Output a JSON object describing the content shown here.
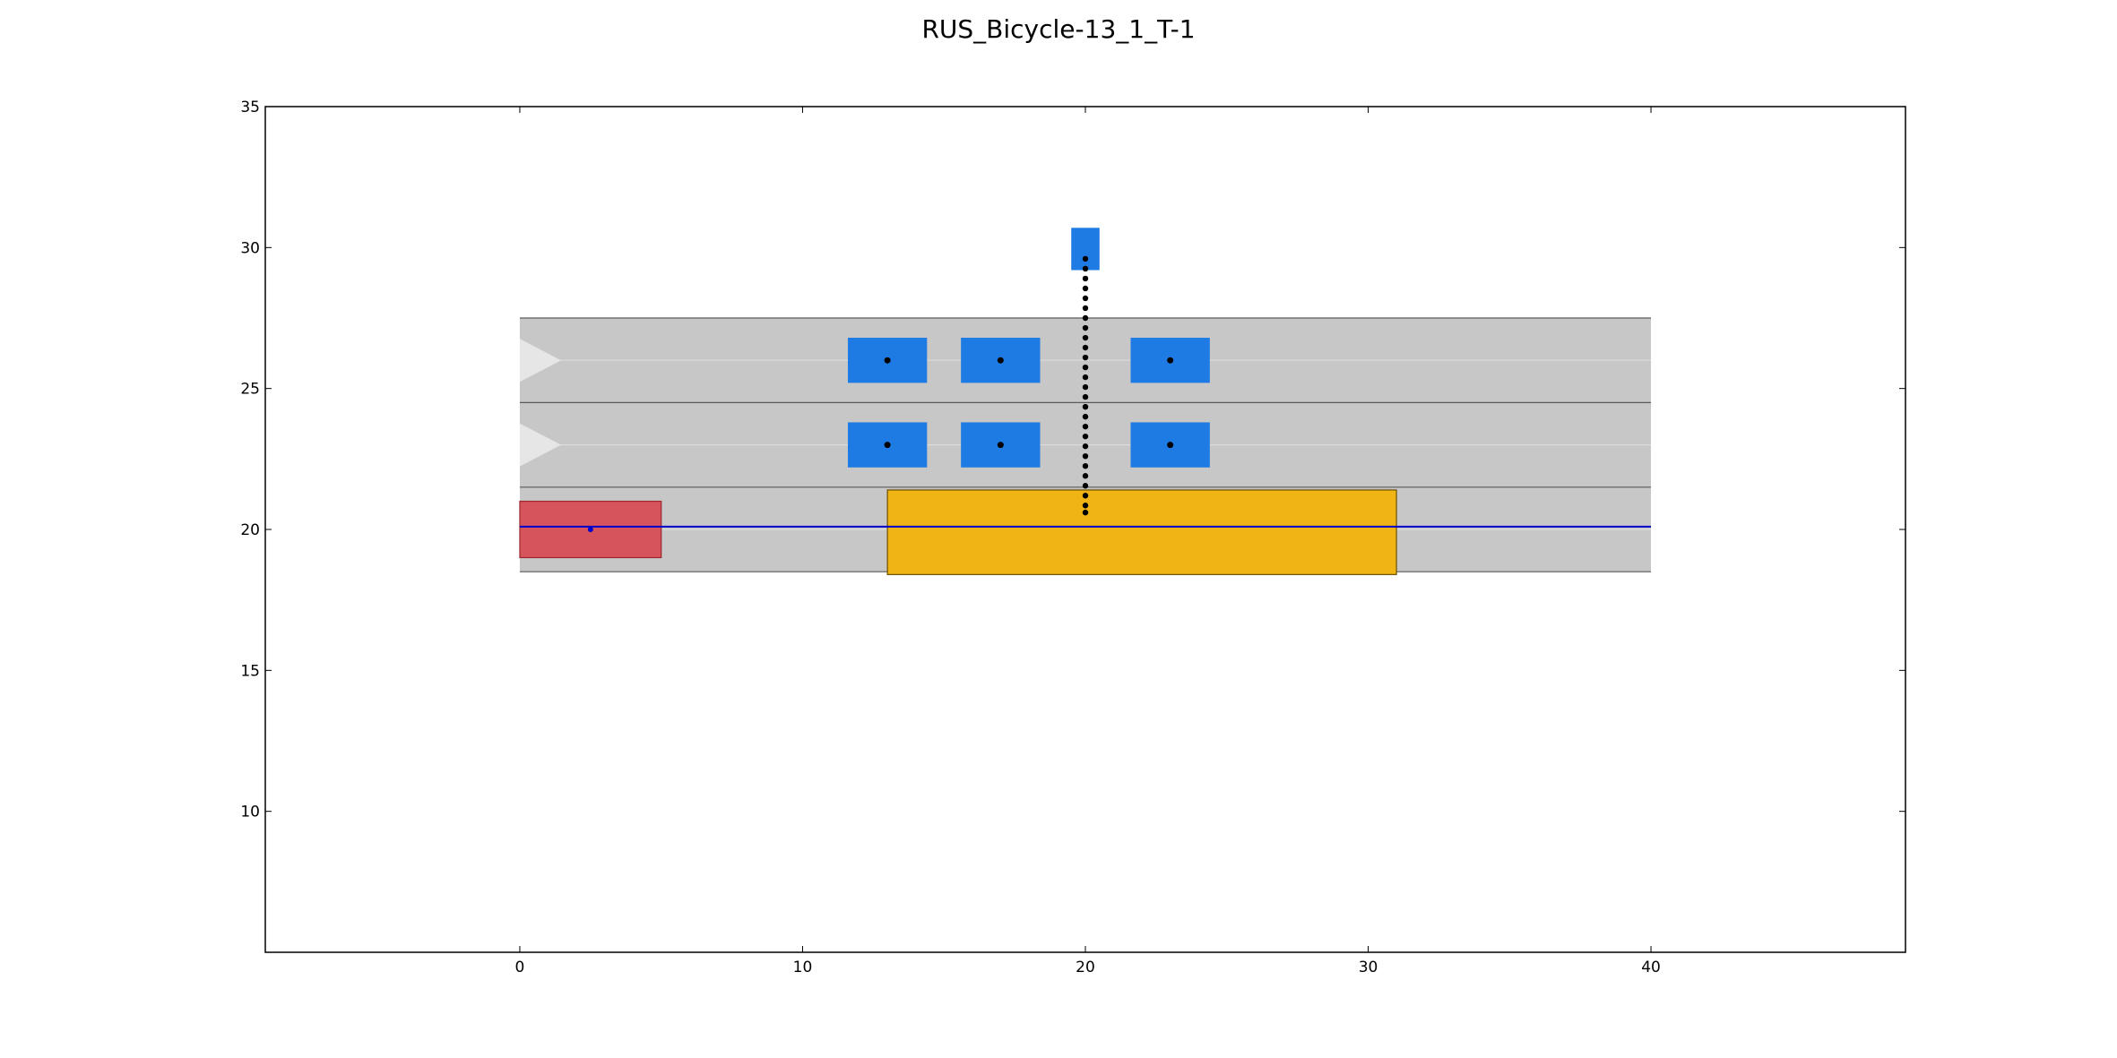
{
  "title": "RUS_Bicycle-13_1_T-1",
  "chart_data": {
    "type": "scatter",
    "title": "RUS_Bicycle-13_1_T-1",
    "xlabel": "",
    "ylabel": "",
    "xlim": [
      -9,
      49
    ],
    "ylim": [
      5,
      35
    ],
    "xticks": [
      0,
      10,
      20,
      30,
      40
    ],
    "yticks": [
      10,
      15,
      20,
      25,
      30,
      35
    ],
    "grid": false,
    "colors": {
      "road": "#c7c7c7",
      "lane_boundary": "#5a5a5a",
      "lane_center": "#dcdcdc",
      "lane_arrow": "#e6e6e6",
      "ego": "#d6545c",
      "obstacle_static": "#f0b514",
      "obstacle_dynamic": "#1e7be4",
      "route": "#0000cc",
      "trajectory": "#000000"
    },
    "lanes": [
      {
        "x_start": 0,
        "x_end": 40,
        "y_bottom": 18.5,
        "y_top": 21.5
      },
      {
        "x_start": 0,
        "x_end": 40,
        "y_bottom": 21.5,
        "y_top": 24.5
      },
      {
        "x_start": 0,
        "x_end": 40,
        "y_bottom": 24.5,
        "y_top": 27.5
      }
    ],
    "lane_directions": [
      {
        "x": 0,
        "y": 23.0,
        "direction": "right"
      },
      {
        "x": 0,
        "y": 26.0,
        "direction": "right"
      }
    ],
    "ego_vehicle": {
      "x_min": 0,
      "x_max": 5,
      "y_min": 19,
      "y_max": 21,
      "center": [
        2.5,
        20
      ]
    },
    "route_line": {
      "x": [
        0,
        40
      ],
      "y": [
        20.1,
        20.1
      ]
    },
    "static_obstacle": {
      "x_min": 13,
      "x_max": 31,
      "y_min": 18.4,
      "y_max": 21.4
    },
    "dynamic_obstacles": [
      {
        "x_min": 11.6,
        "x_max": 14.4,
        "y_min": 25.2,
        "y_max": 26.8,
        "center": [
          13,
          26
        ]
      },
      {
        "x_min": 15.6,
        "x_max": 18.4,
        "y_min": 25.2,
        "y_max": 26.8,
        "center": [
          17,
          26
        ]
      },
      {
        "x_min": 21.6,
        "x_max": 24.4,
        "y_min": 25.2,
        "y_max": 26.8,
        "center": [
          23,
          26
        ]
      },
      {
        "x_min": 11.6,
        "x_max": 14.4,
        "y_min": 22.2,
        "y_max": 23.8,
        "center": [
          13,
          23
        ]
      },
      {
        "x_min": 15.6,
        "x_max": 18.4,
        "y_min": 22.2,
        "y_max": 23.8,
        "center": [
          17,
          23
        ]
      },
      {
        "x_min": 21.6,
        "x_max": 24.4,
        "y_min": 22.2,
        "y_max": 23.8,
        "center": [
          23,
          23
        ]
      }
    ],
    "bicycle": {
      "x_min": 19.5,
      "x_max": 20.5,
      "y_min": 29.2,
      "y_max": 30.7
    },
    "bicycle_trajectory": {
      "x": [
        20,
        20,
        20,
        20,
        20,
        20,
        20,
        20,
        20,
        20,
        20,
        20,
        20,
        20,
        20,
        20,
        20,
        20,
        20,
        20,
        20,
        20,
        20,
        20,
        20,
        20,
        20
      ],
      "y": [
        29.6,
        29.25,
        28.9,
        28.55,
        28.2,
        27.85,
        27.5,
        27.15,
        26.8,
        26.45,
        26.1,
        25.75,
        25.4,
        25.05,
        24.7,
        24.35,
        24.0,
        23.65,
        23.3,
        22.95,
        22.6,
        22.25,
        21.9,
        21.55,
        21.2,
        20.85,
        20.6
      ]
    }
  }
}
